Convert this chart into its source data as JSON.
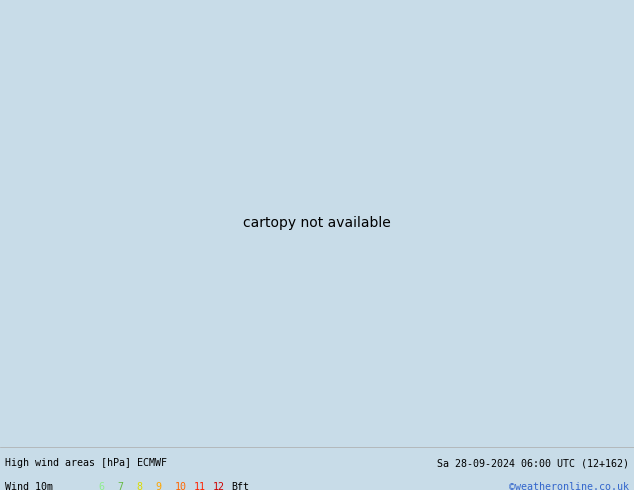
{
  "title_left": "High wind areas [hPa] ECMWF",
  "title_right": "Sa 28-09-2024 06:00 UTC (12+162)",
  "subtitle_left": "Wind 10m",
  "subtitle_right": "©weatheronline.co.uk",
  "bft_colors": [
    "#90ee90",
    "#66bb44",
    "#dddd00",
    "#ffa500",
    "#ff6600",
    "#ff2200",
    "#cc0000"
  ],
  "bft_nums": [
    "6",
    "7",
    "8",
    "9",
    "10",
    "11",
    "12"
  ],
  "background_color": "#c8dce8",
  "land_color": "#aade88",
  "ocean_color": "#c8dce8",
  "isobar_blue": "#3355cc",
  "isobar_red": "#cc2222",
  "isobar_black": "#111111",
  "fig_width": 6.34,
  "fig_height": 4.9,
  "dpi": 100,
  "lon_min": 90,
  "lon_max": 200,
  "lat_min": -65,
  "lat_max": 5,
  "bottom_bg": "#ffffff",
  "subtitle_right_color": "#3366cc"
}
